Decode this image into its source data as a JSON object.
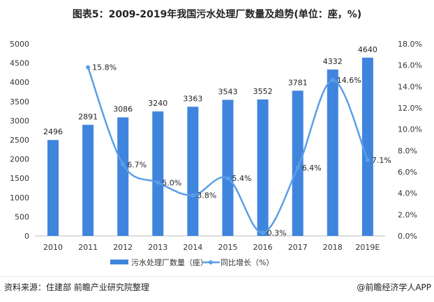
{
  "title": "图表5：2009-2019年我国污水处理厂数量及趋势(单位：座，%)",
  "source": "资料来源：住建部 前瞻产业研究院整理",
  "brand": "@前瞻经济学人APP",
  "chart_data": {
    "type": "bar+line",
    "categories": [
      "2010",
      "2011",
      "2012",
      "2013",
      "2014",
      "2015",
      "2016",
      "2017",
      "2018",
      "2019E"
    ],
    "series": [
      {
        "name": "污水处理厂数量（座）",
        "type": "bar",
        "axis": "left",
        "color": "#3f85de",
        "values": [
          2496,
          2891,
          3086,
          3240,
          3363,
          3543,
          3552,
          3781,
          4332,
          4640
        ]
      },
      {
        "name": "同比增长（%）",
        "type": "line",
        "axis": "right",
        "color": "#5b9ee6",
        "smooth": true,
        "values": [
          null,
          15.8,
          6.7,
          5.0,
          3.8,
          5.4,
          0.3,
          6.4,
          14.6,
          7.1
        ]
      }
    ],
    "left_axis": {
      "min": 0,
      "max": 5000,
      "step": 500,
      "ticks": [
        "0",
        "500",
        "1000",
        "1500",
        "2000",
        "2500",
        "3000",
        "3500",
        "4000",
        "4500",
        "5000"
      ]
    },
    "right_axis": {
      "min": 0,
      "max": 18,
      "step": 2,
      "ticks": [
        "0.0%",
        "2.0%",
        "4.0%",
        "6.0%",
        "8.0%",
        "10.0%",
        "12.0%",
        "14.0%",
        "16.0%",
        "18.0%"
      ]
    },
    "line_labels": [
      "",
      "15.8%",
      "6.7%",
      "5.0%",
      "3.8%",
      "5.4%",
      "0.3%",
      "6.4%",
      "14.6%",
      "7.1%"
    ],
    "grid": false,
    "legend_position": "bottom"
  }
}
